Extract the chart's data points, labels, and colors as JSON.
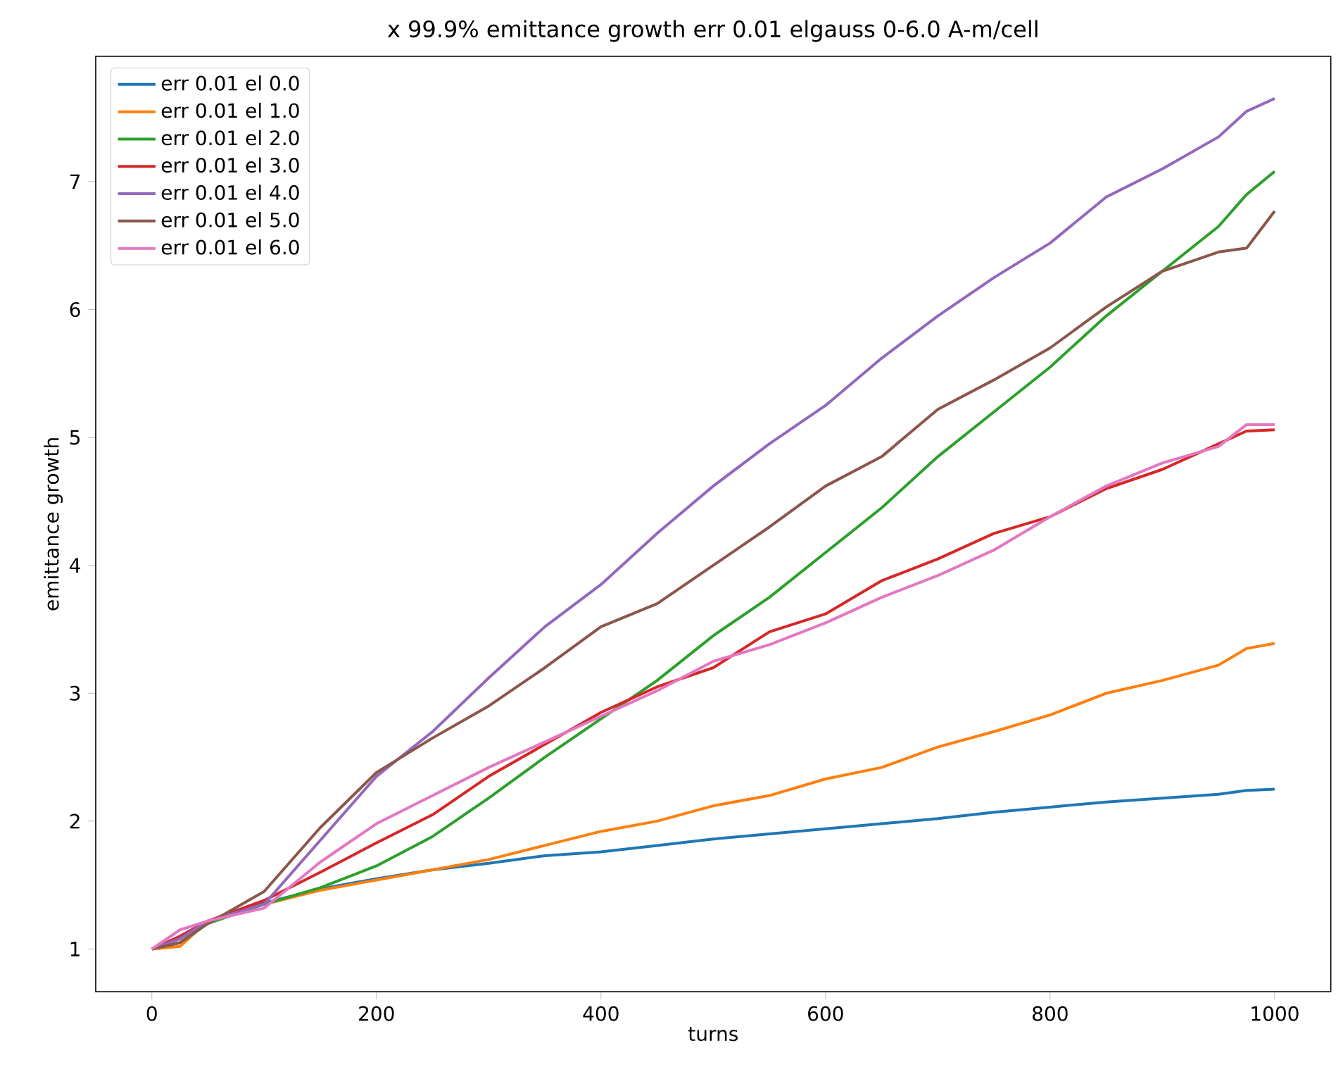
{
  "chart_data": {
    "type": "line",
    "title": "x 99.9% emittance growth err 0.01 elgauss 0-6.0 A-m/cell",
    "xlabel": "turns",
    "ylabel": "emittance growth",
    "x": [
      0,
      25,
      50,
      100,
      150,
      200,
      250,
      300,
      350,
      400,
      450,
      500,
      550,
      600,
      650,
      700,
      750,
      800,
      850,
      900,
      950,
      975,
      1000
    ],
    "xlim": [
      -50,
      1050
    ],
    "xticks": [
      0,
      200,
      400,
      600,
      800,
      1000
    ],
    "ylim": [
      0.667,
      7.98
    ],
    "yticks": [
      1,
      2,
      3,
      4,
      5,
      6,
      7
    ],
    "legend": "top left",
    "grid": false,
    "line_style": "solid",
    "series": [
      {
        "name": "err 0.01 el 0.0",
        "color": "#1f77b4",
        "values": [
          null,
          null,
          1.22,
          1.36,
          1.47,
          1.55,
          1.62,
          1.67,
          1.73,
          1.76,
          1.81,
          1.86,
          1.9,
          1.94,
          1.98,
          2.02,
          2.07,
          2.11,
          2.15,
          2.18,
          2.21,
          2.24,
          2.25
        ]
      },
      {
        "name": "err 0.01 el 1.0",
        "color": "#ff7f0e",
        "values": [
          1.0,
          1.02,
          1.22,
          1.35,
          1.46,
          1.54,
          1.62,
          1.7,
          1.81,
          1.92,
          2.0,
          2.12,
          2.2,
          2.33,
          2.42,
          2.58,
          2.7,
          2.83,
          3.0,
          3.1,
          3.22,
          3.35,
          3.39
        ]
      },
      {
        "name": "err 0.01 el 2.0",
        "color": "#2ca02c",
        "values": [
          1.0,
          1.05,
          1.2,
          1.35,
          1.48,
          1.65,
          1.88,
          2.18,
          2.5,
          2.8,
          3.1,
          3.45,
          3.75,
          4.1,
          4.45,
          4.85,
          5.2,
          5.55,
          5.95,
          6.3,
          6.65,
          6.9,
          7.08
        ]
      },
      {
        "name": "err 0.01 el 3.0",
        "color": "#d62728",
        "values": [
          1.0,
          1.1,
          1.22,
          1.38,
          1.6,
          1.83,
          2.05,
          2.35,
          2.6,
          2.85,
          3.05,
          3.2,
          3.48,
          3.62,
          3.88,
          4.05,
          4.25,
          4.38,
          4.6,
          4.75,
          4.95,
          5.05,
          5.06
        ]
      },
      {
        "name": "err 0.01 el 4.0",
        "color": "#9467bd",
        "values": [
          1.0,
          1.08,
          1.22,
          1.35,
          1.85,
          2.35,
          2.7,
          3.12,
          3.52,
          3.85,
          4.25,
          4.62,
          4.95,
          5.25,
          5.62,
          5.95,
          6.25,
          6.52,
          6.88,
          7.1,
          7.35,
          7.55,
          7.65
        ]
      },
      {
        "name": "err 0.01 el 5.0",
        "color": "#8c564b",
        "values": [
          1.0,
          1.05,
          1.2,
          1.45,
          1.95,
          2.38,
          2.65,
          2.9,
          3.2,
          3.52,
          3.7,
          4.0,
          4.3,
          4.62,
          4.85,
          5.22,
          5.45,
          5.7,
          6.02,
          6.3,
          6.45,
          6.48,
          6.77
        ]
      },
      {
        "name": "err 0.01 el 6.0",
        "color": "#e377c2",
        "values": [
          1.0,
          1.15,
          1.22,
          1.32,
          1.68,
          1.98,
          2.2,
          2.42,
          2.62,
          2.82,
          3.02,
          3.25,
          3.38,
          3.55,
          3.75,
          3.92,
          4.12,
          4.38,
          4.62,
          4.8,
          4.93,
          5.1,
          5.1
        ]
      }
    ]
  }
}
